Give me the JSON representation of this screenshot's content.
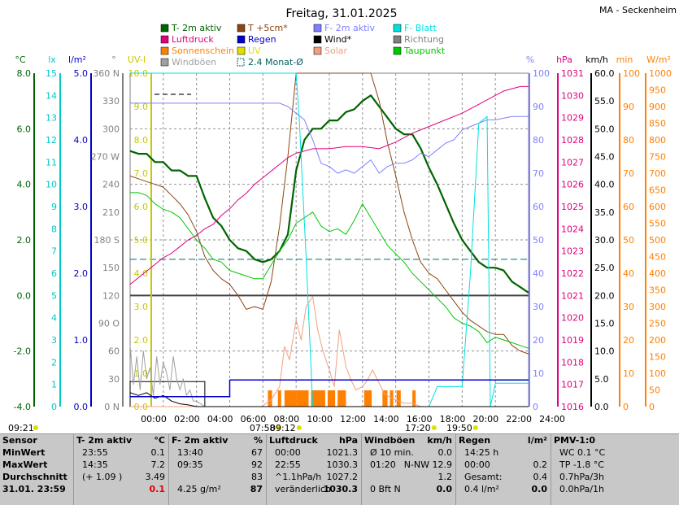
{
  "title": "Freitag, 31.01.2025",
  "station": "MA - Seckenheim",
  "legend": [
    {
      "label": "T- 2m aktiv",
      "color": "#006400",
      "type": "box"
    },
    {
      "label": "T +5cm*",
      "color": "#8b4513",
      "type": "box"
    },
    {
      "label": "F- 2m aktiv",
      "color": "#8080ff",
      "type": "box"
    },
    {
      "label": "F- Blatt",
      "color": "#00e0e0",
      "type": "box"
    },
    {
      "label": "Luftdruck",
      "color": "#e0007f",
      "type": "box"
    },
    {
      "label": "Regen",
      "color": "#0000c8",
      "type": "box"
    },
    {
      "label": "Wind*",
      "color": "#000000",
      "type": "box"
    },
    {
      "label": "Richtung",
      "color": "#808080",
      "type": "box"
    },
    {
      "label": "Sonnenschein",
      "color": "#ff8000",
      "type": "box"
    },
    {
      "label": "UV",
      "color": "#e0e000",
      "type": "box"
    },
    {
      "label": "Solar",
      "color": "#f0a080",
      "type": "box"
    },
    {
      "label": "Taupunkt",
      "color": "#00c800",
      "type": "box"
    },
    {
      "label": "Windböen",
      "color": "#a0a0a0",
      "type": "box"
    },
    {
      "label": "2.4 Monat-Ø",
      "color": "#006060",
      "type": "dash"
    }
  ],
  "axis_units": {
    "temp": "°C",
    "lux": "lx",
    "rain": "l/m²",
    "dir": "°",
    "uv": "UV-I",
    "hum": "%",
    "press": "hPa",
    "wind": "km/h",
    "sunmin": "min",
    "solar": "W/m²"
  },
  "axes": {
    "temp": {
      "ticks": [
        "8.0",
        "6.0",
        "4.0",
        "2.0",
        "0.0",
        "-2.0",
        "-4.0"
      ],
      "color": "#006400"
    },
    "lux": {
      "ticks": [
        "15",
        "14",
        "13",
        "12",
        "11",
        "10",
        "9",
        "8",
        "7",
        "6",
        "5",
        "4",
        "3",
        "2",
        "1",
        "0"
      ],
      "color": "#00c8c8"
    },
    "rain": {
      "ticks": [
        "5.0",
        "4.0",
        "3.0",
        "2.0",
        "1.0",
        "0.0"
      ],
      "color": "#0000c8"
    },
    "dir": {
      "ticks": [
        "360 N",
        "330",
        "300",
        "270 W",
        "240",
        "210",
        "180 S",
        "150",
        "120",
        "90 O",
        "60",
        "30",
        "0 N"
      ],
      "color": "#808080"
    },
    "uv": {
      "ticks": [
        "10.0",
        "9.0",
        "8.0",
        "7.0",
        "6.0",
        "5.0",
        "4.0",
        "3.0",
        "2.0",
        "1.0",
        "0.0"
      ],
      "color": "#c8c800"
    },
    "hum": {
      "ticks": [
        "100",
        "90",
        "80",
        "70",
        "60",
        "50",
        "40",
        "30",
        "20",
        "10",
        "0"
      ],
      "color": "#8080ff"
    },
    "press": {
      "ticks": [
        "1031",
        "1030",
        "1029",
        "1028",
        "1027",
        "1026",
        "1025",
        "1024",
        "1023",
        "1022",
        "1021",
        "1020",
        "1019",
        "1018",
        "1017",
        "1016"
      ],
      "color": "#e0007f"
    },
    "wind": {
      "ticks": [
        "60.0",
        "55.0",
        "50.0",
        "45.0",
        "40.0",
        "35.0",
        "30.0",
        "25.0",
        "20.0",
        "15.0",
        "10.0",
        "5.0",
        "0.0"
      ],
      "color": "#000000"
    },
    "sunmin": {
      "ticks": [
        "100",
        "90",
        "80",
        "70",
        "60",
        "50",
        "40",
        "30",
        "20",
        "10",
        "0"
      ],
      "color": "#ff8000"
    },
    "solar": {
      "ticks": [
        "1000",
        "950",
        "900",
        "850",
        "800",
        "750",
        "700",
        "650",
        "600",
        "550",
        "500",
        "450",
        "400",
        "350",
        "300",
        "250",
        "200",
        "150",
        "100",
        "50",
        "0"
      ],
      "color": "#ff8000"
    }
  },
  "xticks": [
    "00:00",
    "02:00",
    "04:00",
    "06:00",
    "08:00",
    "10:00",
    "12:00",
    "14:00",
    "16:00",
    "18:00",
    "20:00",
    "22:00",
    "24:00"
  ],
  "times": [
    {
      "label": "09:21",
      "hour": 0
    },
    {
      "label": "07:58",
      "hour": 7.97
    },
    {
      "label": "09:12",
      "hour": 9.2
    },
    {
      "label": "17:20",
      "hour": 17.33
    },
    {
      "label": "19:50",
      "hour": 19.83
    }
  ],
  "chart_data": {
    "type": "line",
    "x_unit": "hour",
    "xlim": [
      0,
      24
    ],
    "series": [
      {
        "name": "T- 2m aktiv",
        "axis": "temp",
        "color": "#006400",
        "width": 2.2,
        "x": [
          0,
          0.5,
          1,
          1.5,
          2,
          2.5,
          3,
          3.5,
          4,
          4.5,
          5,
          5.5,
          6,
          6.5,
          7,
          7.5,
          8,
          8.5,
          9,
          9.5,
          10,
          10.5,
          11,
          11.5,
          12,
          12.5,
          13,
          13.5,
          14,
          14.5,
          15,
          15.5,
          16,
          16.5,
          17,
          17.5,
          18,
          18.5,
          19,
          19.5,
          20,
          20.5,
          21,
          21.5,
          22,
          22.5,
          23,
          23.5,
          24
        ],
        "y": [
          5.2,
          5.1,
          5.1,
          4.8,
          4.8,
          4.5,
          4.5,
          4.3,
          4.3,
          3.5,
          2.8,
          2.5,
          2.0,
          1.7,
          1.6,
          1.3,
          1.2,
          1.3,
          1.6,
          2.2,
          4.5,
          5.6,
          6.0,
          6.0,
          6.3,
          6.3,
          6.6,
          6.7,
          7.0,
          7.2,
          6.8,
          6.4,
          6.0,
          5.8,
          5.8,
          5.3,
          4.6,
          4.0,
          3.3,
          2.6,
          2.0,
          1.6,
          1.2,
          1.0,
          1.0,
          0.9,
          0.5,
          0.3,
          0.1
        ]
      },
      {
        "name": "T +5cm*",
        "axis": "temp",
        "color": "#8b4513",
        "width": 1,
        "x": [
          0,
          0.5,
          1,
          1.5,
          2,
          2.5,
          3,
          3.5,
          4,
          4.5,
          5,
          5.5,
          6,
          6.5,
          7,
          7.5,
          8,
          8.5,
          9,
          9.5,
          10,
          10.5,
          11,
          11.5,
          12,
          12.5,
          13,
          13.5,
          14,
          14.5,
          15,
          15.5,
          16,
          16.5,
          17,
          17.5,
          18,
          18.5,
          19,
          19.5,
          20,
          20.5,
          21,
          21.5,
          22,
          22.5,
          23,
          23.5,
          24
        ],
        "y": [
          4.3,
          4.2,
          4.1,
          4.0,
          3.9,
          3.6,
          3.3,
          2.9,
          2.3,
          1.4,
          0.9,
          0.6,
          0.4,
          0.0,
          -0.5,
          -0.4,
          -0.5,
          0.5,
          2.5,
          5.0,
          8.0,
          9.5,
          9.8,
          9.8,
          9.8,
          9.6,
          9.8,
          10.0,
          9.8,
          9.0,
          7.0,
          5.5,
          4.3,
          3.0,
          2.0,
          1.2,
          0.8,
          0.6,
          0.2,
          -0.2,
          -0.6,
          -0.9,
          -1.1,
          -1.3,
          -1.4,
          -1.4,
          -1.8,
          -2.0,
          -2.1
        ]
      },
      {
        "name": "F- 2m aktiv",
        "axis": "hum",
        "color": "#8080ff",
        "width": 1,
        "x": [
          0,
          1,
          2,
          3,
          4,
          5,
          6,
          7,
          8,
          9,
          9.5,
          10,
          10.5,
          11,
          11.5,
          12,
          12.5,
          13,
          13.5,
          14,
          14.5,
          15,
          15.5,
          16,
          16.5,
          17,
          17.5,
          18,
          18.5,
          19,
          19.5,
          20,
          20.5,
          21,
          21.5,
          22,
          23,
          24
        ],
        "y": [
          91,
          91,
          91,
          91,
          91,
          91,
          91,
          91,
          91,
          91,
          90,
          88,
          86,
          80,
          73,
          72,
          70,
          71,
          70,
          72,
          74,
          70,
          72,
          73,
          73,
          74,
          76,
          75,
          77,
          79,
          80,
          83,
          84,
          85,
          86,
          86,
          87,
          87
        ]
      },
      {
        "name": "Luftdruck",
        "axis": "press",
        "color": "#e0007f",
        "width": 1,
        "x": [
          0,
          0.5,
          1,
          1.5,
          2,
          2.5,
          3,
          3.5,
          4,
          4.5,
          5,
          5.5,
          6,
          6.5,
          7,
          7.5,
          8,
          8.5,
          9,
          9.5,
          10,
          11,
          12,
          13,
          14,
          15,
          16,
          17,
          18,
          19,
          20,
          20.5,
          21,
          21.5,
          22,
          22.5,
          23,
          23.5,
          24
        ],
        "y": [
          1021.5,
          1021.8,
          1022.1,
          1022.4,
          1022.7,
          1022.9,
          1023.2,
          1023.5,
          1023.7,
          1024.0,
          1024.2,
          1024.6,
          1024.9,
          1025.3,
          1025.6,
          1026.0,
          1026.3,
          1026.6,
          1026.9,
          1027.2,
          1027.4,
          1027.6,
          1027.6,
          1027.7,
          1027.7,
          1027.6,
          1027.9,
          1028.3,
          1028.6,
          1028.9,
          1029.2,
          1029.4,
          1029.6,
          1029.8,
          1030.0,
          1030.2,
          1030.3,
          1030.4,
          1030.4
        ]
      },
      {
        "name": "Taupunkt",
        "axis": "temp",
        "color": "#00c800",
        "width": 1,
        "x": [
          0,
          0.5,
          1,
          1.5,
          2,
          2.5,
          3,
          3.5,
          4,
          4.5,
          5,
          5.5,
          6,
          6.5,
          7,
          7.5,
          8,
          8.5,
          9,
          9.5,
          10,
          10.5,
          11,
          11.5,
          12,
          12.5,
          13,
          13.5,
          14,
          14.5,
          15,
          15.5,
          16,
          16.5,
          17,
          17.5,
          18,
          18.5,
          19,
          19.5,
          20,
          20.5,
          21,
          21.5,
          22,
          22.5,
          23,
          23.5,
          24
        ],
        "y": [
          3.7,
          3.7,
          3.6,
          3.3,
          3.1,
          3.0,
          2.8,
          2.4,
          2.0,
          1.7,
          1.3,
          1.2,
          0.9,
          0.8,
          0.7,
          0.6,
          0.6,
          1.1,
          1.6,
          2.0,
          2.6,
          2.8,
          3.0,
          2.5,
          2.3,
          2.4,
          2.2,
          2.7,
          3.3,
          2.8,
          2.3,
          1.8,
          1.5,
          1.2,
          0.8,
          0.5,
          0.2,
          -0.1,
          -0.4,
          -0.8,
          -1.0,
          -1.1,
          -1.3,
          -1.7,
          -1.5,
          -1.6,
          -1.7,
          -1.8,
          -1.9
        ]
      },
      {
        "name": "F- Blatt",
        "axis": "hum",
        "color": "#00e0e0",
        "width": 1,
        "x": [
          0,
          9.6,
          10,
          10.2,
          10.4,
          10.6,
          11,
          11.5,
          12,
          14,
          16,
          17.5,
          18,
          18.5,
          19,
          19.5,
          19.8,
          20,
          20.5,
          21,
          21.5,
          21.7,
          22,
          24
        ],
        "y": [
          100,
          100,
          100,
          85,
          65,
          45,
          0,
          0,
          0,
          0,
          0,
          0,
          0,
          6,
          6,
          6,
          6,
          6,
          40,
          85,
          87,
          0,
          7,
          7
        ]
      },
      {
        "name": "Solar",
        "axis": "solar",
        "color": "#f0a080",
        "width": 1,
        "x": [
          0,
          7.9,
          8.5,
          9,
          9.3,
          9.6,
          10,
          10.3,
          10.6,
          11,
          11.3,
          11.6,
          12,
          12.3,
          12.6,
          13,
          13.3,
          13.6,
          14,
          14.3,
          14.6,
          15,
          15.3,
          15.6,
          16,
          16.5,
          17,
          17.5,
          18,
          24
        ],
        "y": [
          0,
          0,
          20,
          60,
          180,
          140,
          260,
          200,
          300,
          330,
          230,
          170,
          110,
          60,
          230,
          120,
          80,
          50,
          60,
          80,
          110,
          70,
          40,
          30,
          20,
          10,
          10,
          0,
          0,
          0
        ]
      },
      {
        "name": "Windböen",
        "axis": "wind",
        "color": "#a0a0a0",
        "width": 1,
        "x": [
          0,
          0.2,
          0.4,
          0.6,
          0.8,
          1,
          1.2,
          1.4,
          1.6,
          1.8,
          2,
          2.2,
          2.4,
          2.6,
          2.8,
          3,
          3.2,
          3.4,
          3.6,
          3.8,
          4,
          4.5,
          5,
          24
        ],
        "y": [
          11,
          4,
          9,
          3,
          10,
          5,
          7,
          2,
          9,
          4,
          8,
          6,
          3,
          9,
          5,
          3,
          5,
          2,
          3,
          1,
          1,
          0,
          0,
          0
        ]
      },
      {
        "name": "Wind*",
        "axis": "wind",
        "color": "#000000",
        "width": 1,
        "x": [
          0,
          0.5,
          1,
          1.5,
          2,
          2.5,
          3,
          3.5,
          4,
          24
        ],
        "y": [
          2.5,
          2,
          2.5,
          1.5,
          2,
          1,
          0.5,
          0.3,
          0,
          0
        ]
      },
      {
        "name": "Regen",
        "axis": "rain",
        "color": "#0000c8",
        "width": 1.5,
        "step": true,
        "x": [
          0,
          6,
          6,
          24
        ],
        "y": [
          0.15,
          0.15,
          0.4,
          0.4
        ]
      }
    ],
    "monthly_mean_temp": 1.3,
    "zero_line_temp": 0.0,
    "sunshine_intervals": [
      [
        8.3,
        8.55
      ],
      [
        8.9,
        9.1
      ],
      [
        9.3,
        10.0
      ],
      [
        10.0,
        10.75
      ],
      [
        10.9,
        11.75
      ],
      [
        11.9,
        12.35
      ],
      [
        12.5,
        13.0
      ],
      [
        14.1,
        14.55
      ],
      [
        15.2,
        15.5
      ],
      [
        15.65,
        15.85
      ],
      [
        16.05,
        16.3
      ],
      [
        17.0,
        17.2
      ]
    ],
    "windbox_x": [
      0,
      4.5
    ]
  },
  "footer": {
    "cols": [
      {
        "title": "Sensor",
        "rows": [
          "MinWert",
          "MaxWert",
          "Durchschnitt",
          "31.01.  23:59"
        ]
      },
      {
        "title": "T- 2m aktiv",
        "unit": "°C",
        "rows": [
          [
            "23:55",
            "0.1"
          ],
          [
            "14:35",
            "7.2"
          ],
          [
            "(+ 1.09 )",
            "3.49"
          ],
          [
            "",
            "0.1"
          ]
        ]
      },
      {
        "title": "F- 2m aktiv",
        "unit": "%",
        "rows": [
          [
            "13:40",
            "67"
          ],
          [
            "09:35",
            "92"
          ],
          [
            "",
            "83"
          ],
          [
            "4.25 g/m²",
            "87"
          ]
        ]
      },
      {
        "title": "Luftdruck",
        "unit": "hPa",
        "rows": [
          [
            "00:00",
            "1021.3"
          ],
          [
            "22:55",
            "1030.3"
          ],
          [
            "^1.1hPa/h",
            "1027.2"
          ],
          [
            "veränderlich",
            "1030.3"
          ]
        ]
      },
      {
        "title": "Windböen",
        "unit": "km/h",
        "rows": [
          [
            "Ø 10 min.",
            "0.0"
          ],
          [
            "01:20",
            "N-NW 12.9"
          ],
          [
            "",
            "1.2"
          ],
          [
            "0 Bft N",
            "0.0"
          ]
        ]
      },
      {
        "title": "Regen",
        "unit": "l/m²",
        "rows": [
          [
            "14:25 h",
            ""
          ],
          [
            "00:00",
            "0.2"
          ],
          [
            "Gesamt:",
            "0.4"
          ],
          [
            "0.4 l/m²",
            "0.0"
          ]
        ]
      },
      {
        "title": "PMV-1:0",
        "unit": "",
        "rows": [
          "WC 0.1 °C",
          "TP -1.8 °C",
          "0.7hPa/3h",
          "0.0hPa/1h"
        ]
      }
    ]
  }
}
